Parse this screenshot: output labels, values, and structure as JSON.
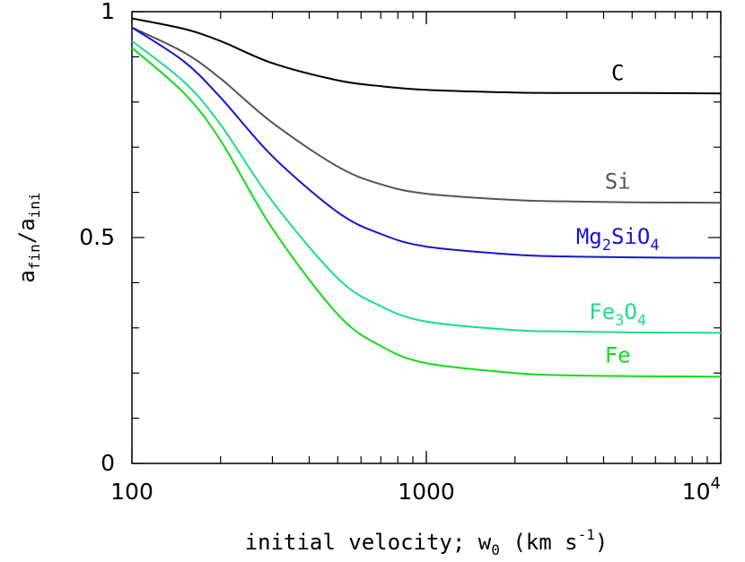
{
  "chart_data": {
    "type": "line",
    "xscale": "log",
    "xlim": [
      100,
      10000
    ],
    "ylim": [
      0,
      1
    ],
    "xlabel": {
      "main": "initial velocity; w",
      "sub": "0",
      "tail": " (km s",
      "sup": "-1",
      "end": ")"
    },
    "ylabel": {
      "a1": "a",
      "sub1": "fin",
      "slash": "/a",
      "sub2": "ini"
    },
    "xticks": [
      {
        "value": 100,
        "label": "100"
      },
      {
        "value": 1000,
        "label": "1000"
      },
      {
        "value": 10000,
        "label": "10",
        "sup": "4"
      }
    ],
    "yticks": [
      {
        "value": 0,
        "label": "0"
      },
      {
        "value": 0.5,
        "label": "0.5"
      },
      {
        "value": 1,
        "label": "1"
      }
    ],
    "series": [
      {
        "name": "C",
        "label_parts": [
          {
            "t": "C"
          }
        ],
        "color": "#000000",
        "x": [
          100,
          150,
          200,
          300,
          500,
          700,
          1000,
          2000,
          3000,
          5000,
          10000
        ],
        "y": [
          0.985,
          0.962,
          0.935,
          0.886,
          0.848,
          0.835,
          0.827,
          0.821,
          0.82,
          0.82,
          0.819
        ]
      },
      {
        "name": "Si",
        "label_parts": [
          {
            "t": "Si"
          }
        ],
        "color": "#555555",
        "x": [
          100,
          150,
          200,
          300,
          500,
          700,
          1000,
          2000,
          3000,
          5000,
          10000
        ],
        "y": [
          0.965,
          0.91,
          0.852,
          0.754,
          0.657,
          0.618,
          0.597,
          0.583,
          0.58,
          0.578,
          0.577
        ]
      },
      {
        "name": "Mg2SiO4",
        "label_parts": [
          {
            "t": "Mg"
          },
          {
            "t": "2",
            "sub": true
          },
          {
            "t": "SiO"
          },
          {
            "t": "4",
            "sub": true
          }
        ],
        "color": "#1414d2",
        "x": [
          100,
          150,
          200,
          300,
          500,
          700,
          1000,
          2000,
          3000,
          5000,
          10000
        ],
        "y": [
          0.965,
          0.89,
          0.81,
          0.68,
          0.556,
          0.508,
          0.48,
          0.462,
          0.458,
          0.456,
          0.455
        ]
      },
      {
        "name": "Fe3O4",
        "label_parts": [
          {
            "t": "Fe"
          },
          {
            "t": "3",
            "sub": true
          },
          {
            "t": "O"
          },
          {
            "t": "4",
            "sub": true
          }
        ],
        "color": "#1edc8c",
        "x": [
          100,
          150,
          200,
          300,
          500,
          700,
          1000,
          2000,
          3000,
          5000,
          10000
        ],
        "y": [
          0.935,
          0.845,
          0.75,
          0.58,
          0.41,
          0.348,
          0.314,
          0.295,
          0.292,
          0.29,
          0.289
        ]
      },
      {
        "name": "Fe",
        "label_parts": [
          {
            "t": "Fe"
          }
        ],
        "color": "#14dc14",
        "x": [
          100,
          150,
          200,
          300,
          500,
          700,
          1000,
          2000,
          3000,
          5000,
          10000
        ],
        "y": [
          0.92,
          0.82,
          0.715,
          0.52,
          0.33,
          0.26,
          0.222,
          0.2,
          0.195,
          0.193,
          0.192
        ]
      }
    ]
  }
}
